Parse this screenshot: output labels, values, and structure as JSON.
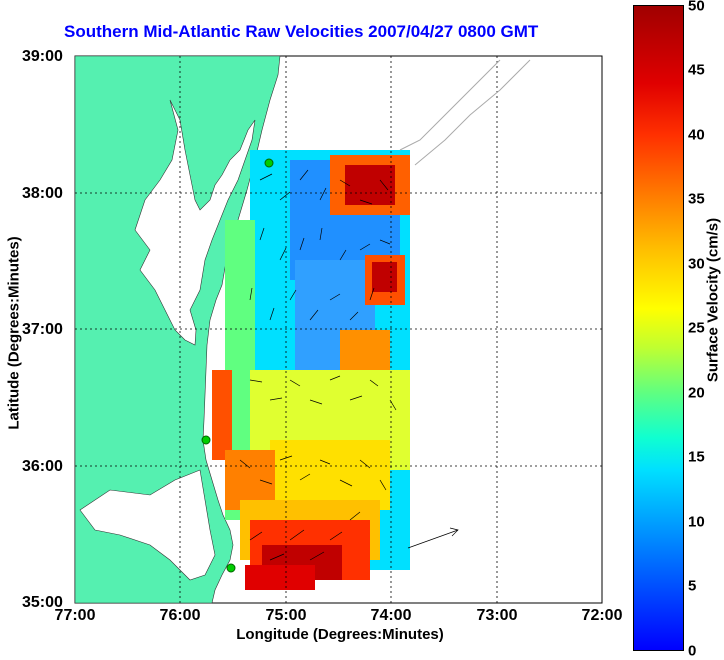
{
  "title": "Southern Mid-Atlantic Raw Velocities 2007/04/27 0800 GMT",
  "axes": {
    "y_title": "Latitude (Degrees:Minutes)",
    "x_title": "Longitude (Degrees:Minutes)",
    "y_ticks": [
      "39:00",
      "38:00",
      "37:00",
      "36:00",
      "35:00"
    ],
    "x_ticks": [
      "77:00",
      "76:00",
      "75:00",
      "74:00",
      "73:00",
      "72:00"
    ]
  },
  "colorbar": {
    "title": "Surface Velocity (cm/s)",
    "ticks": [
      "50",
      "45",
      "40",
      "35",
      "30",
      "25",
      "20",
      "15",
      "10",
      "5",
      "0"
    ],
    "colors": {
      "min": "#0000ff",
      "mid": "#ffff00",
      "max": "#a00000"
    }
  },
  "colors": {
    "land": "#55f0b0",
    "title": "#0000ff",
    "site_marker": "#00cc00"
  }
}
